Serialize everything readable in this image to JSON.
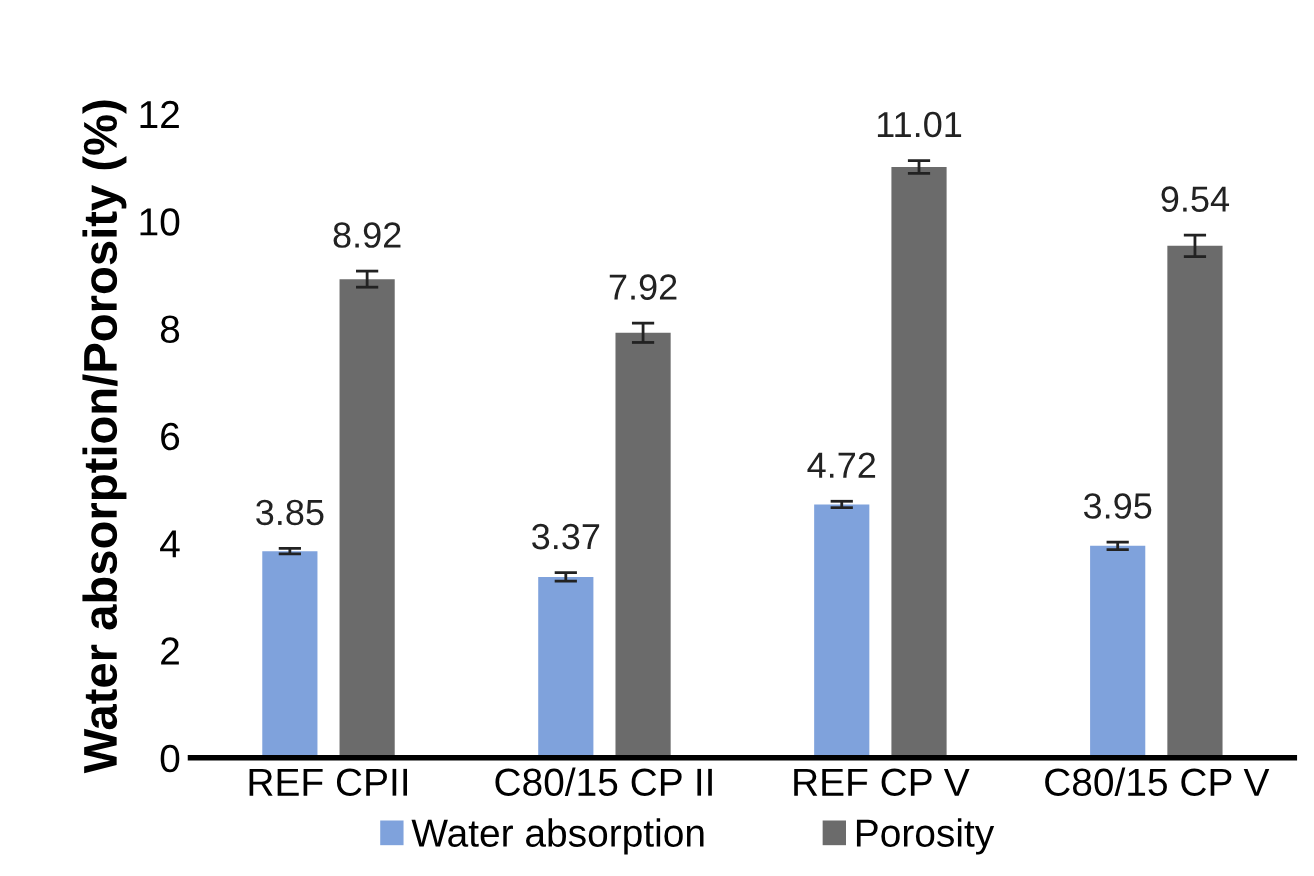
{
  "chart_data": {
    "type": "bar",
    "ylabel": "Water absorption/Porosity (%)",
    "categories": [
      "REF CPII",
      "C80/15 CP II",
      "REF CP V",
      "C80/15 CP V"
    ],
    "series": [
      {
        "name": "Water absorption",
        "color": "#7fa2dc",
        "values": [
          3.85,
          3.37,
          4.72,
          3.95
        ],
        "errors": [
          0.05,
          0.08,
          0.06,
          0.07
        ]
      },
      {
        "name": "Porosity",
        "color": "#6b6b6b",
        "values": [
          8.92,
          7.92,
          11.01,
          9.54
        ],
        "errors": [
          0.15,
          0.18,
          0.12,
          0.2
        ]
      }
    ],
    "ylim": [
      0,
      12
    ],
    "yticks": [
      0,
      2,
      4,
      6,
      8,
      10,
      12
    ],
    "data_labels": true,
    "grid": false,
    "legend": "bottom"
  }
}
